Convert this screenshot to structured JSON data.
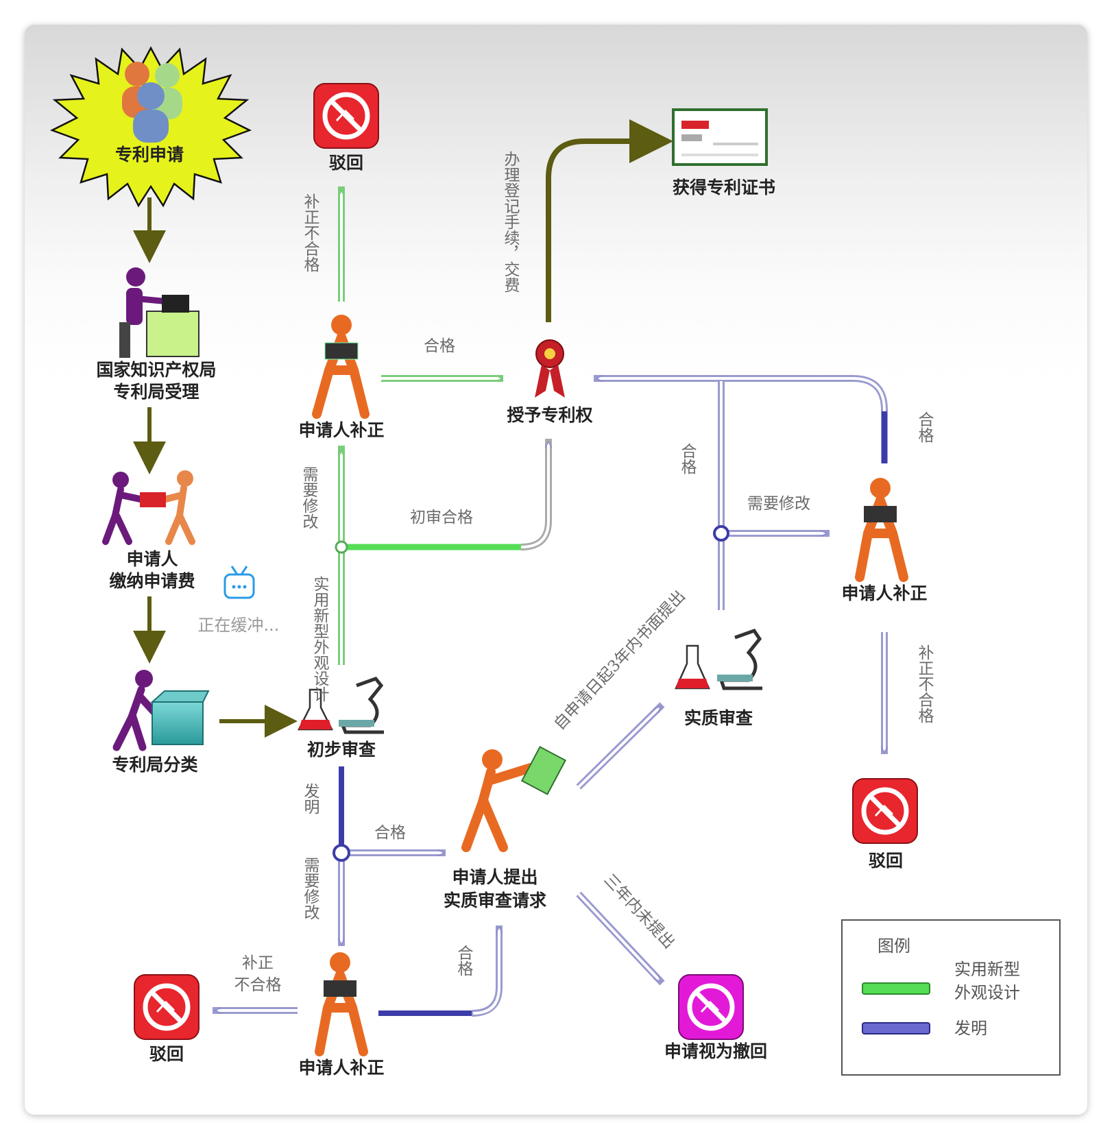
{
  "nodes": {
    "start": "专利申请",
    "office_line1": "国家知识产权局",
    "office_line2": "专利局受理",
    "fee_line1": "申请人",
    "fee_line2": "缴纳申请费",
    "classify": "专利局分类",
    "prelim": "初步审查",
    "reject_top": "驳回",
    "amend_top": "申请人补正",
    "grant": "授予专利权",
    "certificate": "获得专利证书",
    "substantive": "实质审查",
    "amend_right": "申请人补正",
    "reject_right": "驳回",
    "request_line1": "申请人提出",
    "request_line2": "实质审查请求",
    "withdrawn": "申请视为撤回",
    "amend_bottom": "申请人补正",
    "reject_bottom": "驳回"
  },
  "edges": {
    "amend_fail_top": "补正不合格",
    "pass_top": "合格",
    "register_fee": "办理登记手续，交费",
    "need_modify_left": "需要修改",
    "utility_design": "实用新型外观设计",
    "prelim_pass": "初审合格",
    "pass_substantive": "合格",
    "need_modify_right": "需要修改",
    "pass_right": "合格",
    "amend_fail_right": "补正不合格",
    "within_3_years": "自申请日起3年内书面提出",
    "no_request_3y": "三年内未提出",
    "invention": "发明",
    "pass_mid": "合格",
    "need_modify_bottom": "需要修改",
    "pass_bottom": "合格",
    "amend_fail_bottom_l1": "补正",
    "amend_fail_bottom_l2": "不合格"
  },
  "legend": {
    "title": "图例",
    "green_line1": "实用新型",
    "green_line2": "外观设计",
    "purple": "发明"
  },
  "overlay": {
    "buffering": "正在缓冲..."
  },
  "colors": {
    "olive": "#5c5c12",
    "green": "#55dd55",
    "purple": "#3c3ca8",
    "reject_red": "#e8262e",
    "withdrawn_magenta": "#e21ad8",
    "person_orange": "#e86a22",
    "starburst": "#e6f21c"
  }
}
